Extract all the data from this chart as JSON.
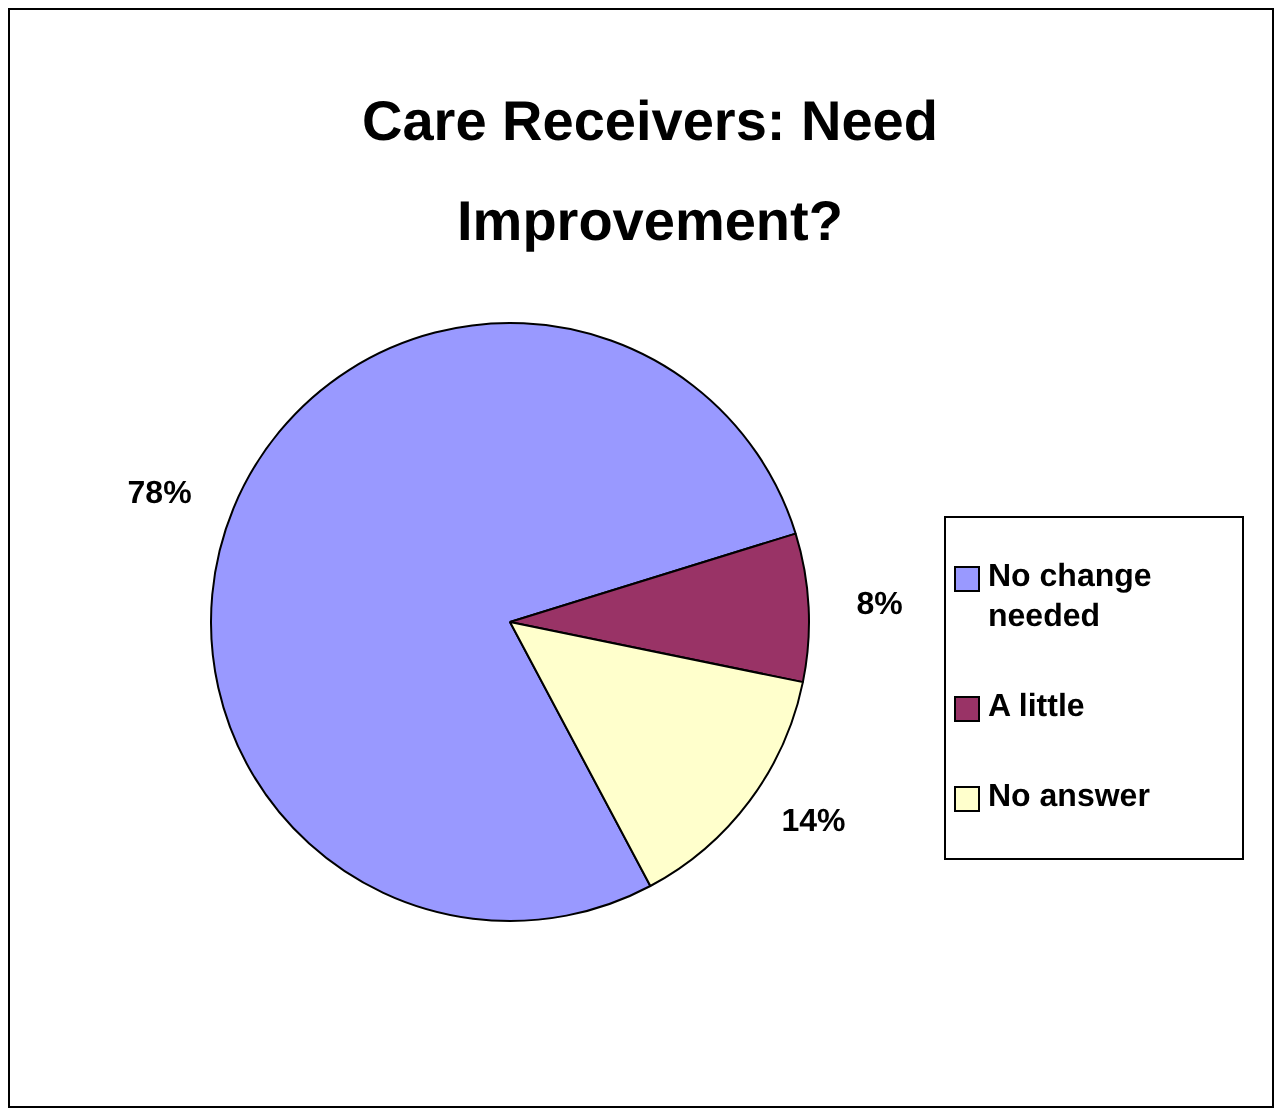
{
  "chart_data": {
    "type": "pie",
    "title": "Care Receivers: Need Improvement?",
    "categories": [
      "No change needed",
      "A little",
      "No answer"
    ],
    "values": [
      78,
      8,
      14
    ],
    "colors": [
      "#9999ff",
      "#993366",
      "#ffffcc"
    ],
    "value_labels": [
      "78%",
      "8%",
      "14%"
    ],
    "legend": "right"
  }
}
